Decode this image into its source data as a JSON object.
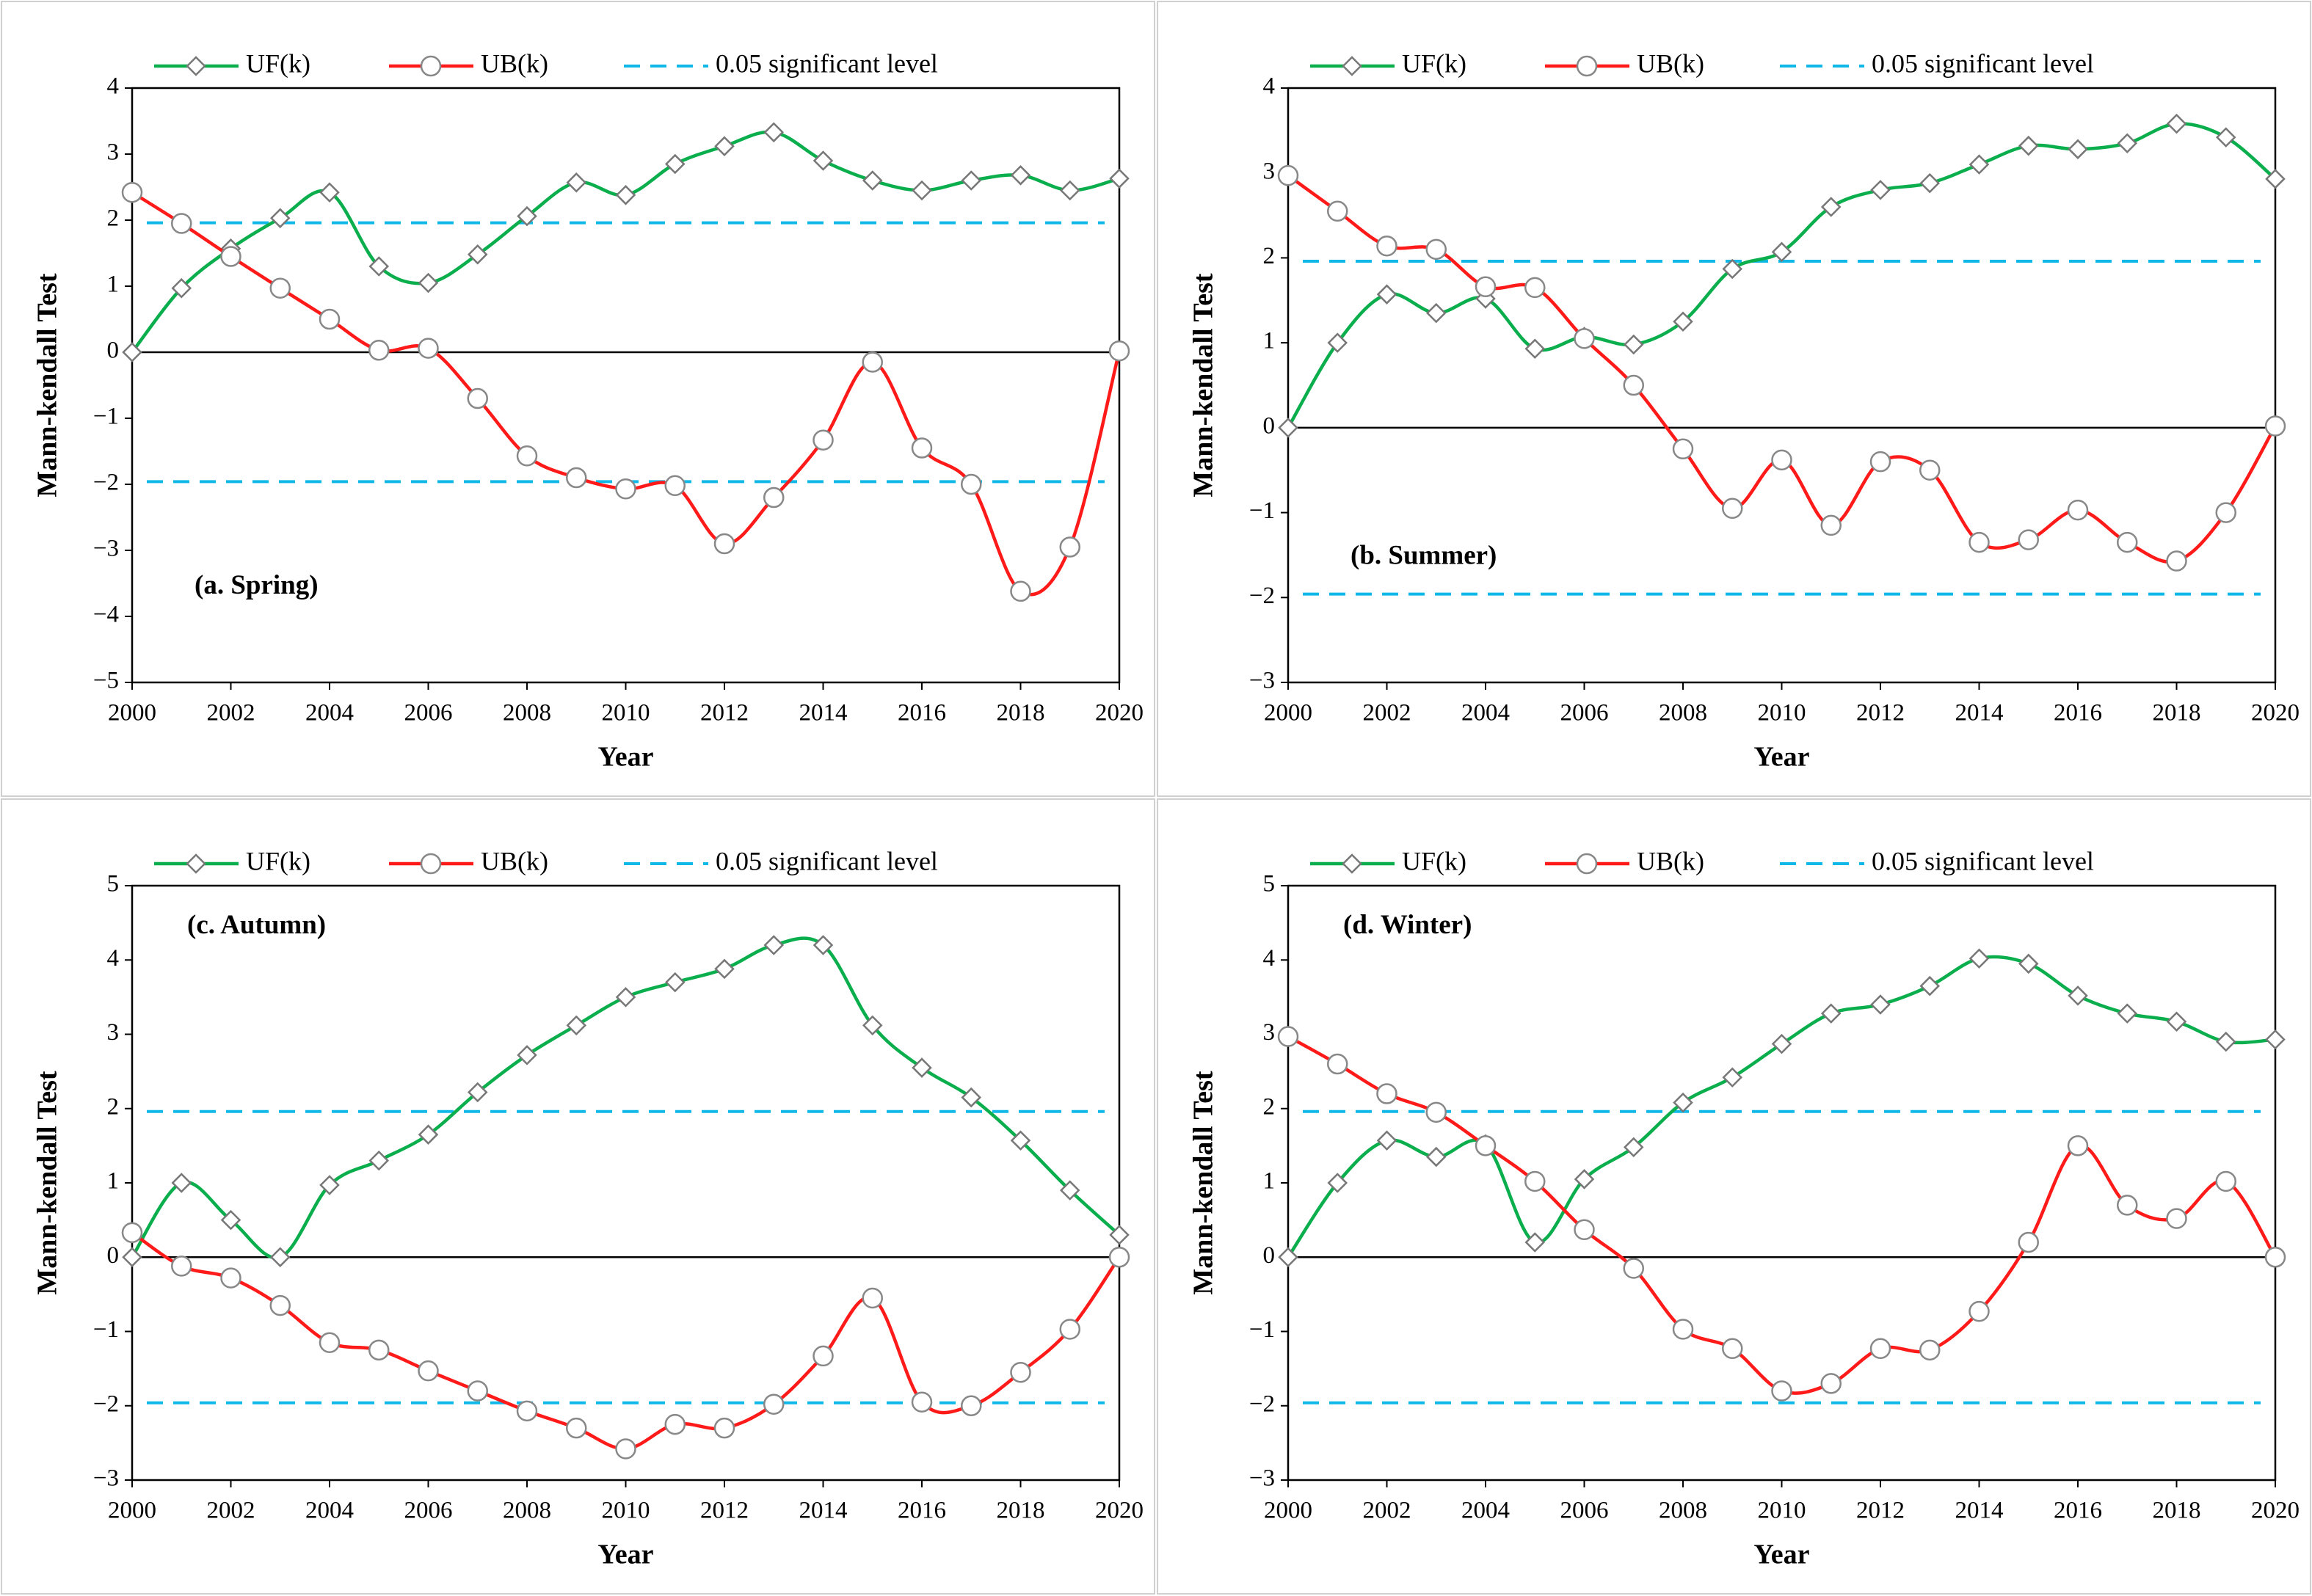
{
  "chart_data": [
    {
      "type": "line",
      "annotation": "(a. Spring)",
      "xlabel": "Year",
      "ylabel": "Mann-kendall Test",
      "x": [
        2000,
        2001,
        2002,
        2003,
        2004,
        2005,
        2006,
        2007,
        2008,
        2009,
        2010,
        2011,
        2012,
        2013,
        2014,
        2015,
        2016,
        2017,
        2018,
        2019,
        2020
      ],
      "xlim": [
        2000,
        2020
      ],
      "xticks": [
        2000,
        2002,
        2004,
        2006,
        2008,
        2010,
        2012,
        2014,
        2016,
        2018,
        2020
      ],
      "ylim": [
        -5,
        4
      ],
      "yticks": [
        {
          "value": -5,
          "label": "−5"
        },
        {
          "value": -4,
          "label": "−4"
        },
        {
          "value": -3,
          "label": "−3"
        },
        {
          "value": -2,
          "label": "−2"
        },
        {
          "value": -1,
          "label": "−1"
        },
        0,
        1,
        2,
        3,
        4
      ],
      "series": [
        {
          "name": "UF(k)",
          "color": "#0aae4c",
          "marker": "diamond",
          "values": [
            0,
            0.97,
            1.57,
            2.03,
            2.42,
            1.3,
            1.05,
            1.48,
            2.06,
            2.57,
            2.38,
            2.85,
            3.12,
            3.33,
            2.9,
            2.6,
            2.45,
            2.6,
            2.68,
            2.45,
            2.63
          ]
        },
        {
          "name": "UB(k)",
          "color": "#ff1a1a",
          "marker": "circle",
          "values": [
            2.42,
            1.95,
            1.45,
            0.97,
            0.5,
            0.03,
            0.06,
            -0.7,
            -1.57,
            -1.9,
            -2.07,
            -2.02,
            -2.9,
            -2.2,
            -1.33,
            -0.15,
            -1.45,
            -2.0,
            -3.62,
            -2.95,
            0.02
          ]
        }
      ],
      "reference_lines": {
        "name": "0.05 significant level",
        "color": "#10b8e8",
        "values": [
          1.96,
          -1.96
        ]
      }
    },
    {
      "type": "line",
      "annotation": "(b. Summer)",
      "xlabel": "Year",
      "ylabel": "Mann-kendall Test",
      "x": [
        2000,
        2001,
        2002,
        2003,
        2004,
        2005,
        2006,
        2007,
        2008,
        2009,
        2010,
        2011,
        2012,
        2013,
        2014,
        2015,
        2016,
        2017,
        2018,
        2019,
        2020
      ],
      "xlim": [
        2000,
        2020
      ],
      "xticks": [
        2000,
        2002,
        2004,
        2006,
        2008,
        2010,
        2012,
        2014,
        2016,
        2018,
        2020
      ],
      "ylim": [
        -3,
        4
      ],
      "yticks": [
        {
          "value": -3,
          "label": "−3"
        },
        {
          "value": -2,
          "label": "−2"
        },
        {
          "value": -1,
          "label": "−1"
        },
        0,
        1,
        2,
        3,
        4
      ],
      "series": [
        {
          "name": "UF(k)",
          "color": "#0aae4c",
          "marker": "diamond",
          "values": [
            0,
            1.0,
            1.57,
            1.35,
            1.52,
            0.93,
            1.07,
            0.98,
            1.25,
            1.87,
            2.07,
            2.6,
            2.8,
            2.88,
            3.1,
            3.32,
            3.28,
            3.35,
            3.58,
            3.42,
            2.93
          ]
        },
        {
          "name": "UB(k)",
          "color": "#ff1a1a",
          "marker": "circle",
          "values": [
            2.97,
            2.55,
            2.14,
            2.1,
            1.66,
            1.65,
            1.05,
            0.5,
            -0.25,
            -0.95,
            -0.38,
            -1.15,
            -0.4,
            -0.5,
            -1.35,
            -1.32,
            -0.97,
            -1.35,
            -1.57,
            -1.0,
            0.02
          ]
        }
      ],
      "reference_lines": {
        "name": "0.05 significant level",
        "color": "#10b8e8",
        "values": [
          1.96,
          -1.96
        ]
      }
    },
    {
      "type": "line",
      "annotation": "(c. Autumn)",
      "xlabel": "Year",
      "ylabel": "Mann-kendall Test",
      "x": [
        2000,
        2001,
        2002,
        2003,
        2004,
        2005,
        2006,
        2007,
        2008,
        2009,
        2010,
        2011,
        2012,
        2013,
        2014,
        2015,
        2016,
        2017,
        2018,
        2019,
        2020
      ],
      "xlim": [
        2000,
        2020
      ],
      "xticks": [
        2000,
        2002,
        2004,
        2006,
        2008,
        2010,
        2012,
        2014,
        2016,
        2018,
        2020
      ],
      "ylim": [
        -3,
        5
      ],
      "yticks": [
        {
          "value": -3,
          "label": "−3"
        },
        {
          "value": -2,
          "label": "−2"
        },
        {
          "value": -1,
          "label": "−1"
        },
        0,
        1,
        2,
        3,
        4,
        5
      ],
      "series": [
        {
          "name": "UF(k)",
          "color": "#0aae4c",
          "marker": "diamond",
          "values": [
            0,
            1.0,
            0.5,
            0,
            0.97,
            1.3,
            1.65,
            2.22,
            2.72,
            3.12,
            3.5,
            3.7,
            3.88,
            4.2,
            4.2,
            3.12,
            2.55,
            2.15,
            1.57,
            0.9,
            0.3
          ]
        },
        {
          "name": "UB(k)",
          "color": "#ff1a1a",
          "marker": "circle",
          "values": [
            0.33,
            -0.12,
            -0.28,
            -0.65,
            -1.15,
            -1.25,
            -1.53,
            -1.8,
            -2.07,
            -2.3,
            -2.58,
            -2.25,
            -2.3,
            -1.98,
            -1.33,
            -0.55,
            -1.95,
            -2.0,
            -1.55,
            -0.97,
            0.0
          ]
        }
      ],
      "reference_lines": {
        "name": "0.05 significant level",
        "color": "#10b8e8",
        "values": [
          1.96,
          -1.96
        ]
      }
    },
    {
      "type": "line",
      "annotation": "(d. Winter)",
      "xlabel": "Year",
      "ylabel": "Mann-kendall Test",
      "x": [
        2000,
        2001,
        2002,
        2003,
        2004,
        2005,
        2006,
        2007,
        2008,
        2009,
        2010,
        2011,
        2012,
        2013,
        2014,
        2015,
        2016,
        2017,
        2018,
        2019,
        2020
      ],
      "xlim": [
        2000,
        2020
      ],
      "xticks": [
        2000,
        2002,
        2004,
        2006,
        2008,
        2010,
        2012,
        2014,
        2016,
        2018,
        2020
      ],
      "ylim": [
        -3,
        5
      ],
      "yticks": [
        {
          "value": -3,
          "label": "−3"
        },
        {
          "value": -2,
          "label": "−2"
        },
        {
          "value": -1,
          "label": "−1"
        },
        0,
        1,
        2,
        3,
        4,
        5
      ],
      "series": [
        {
          "name": "UF(k)",
          "color": "#0aae4c",
          "marker": "diamond",
          "values": [
            0,
            1.0,
            1.57,
            1.35,
            1.52,
            0.2,
            1.05,
            1.48,
            2.08,
            2.42,
            2.87,
            3.28,
            3.4,
            3.65,
            4.02,
            3.95,
            3.52,
            3.28,
            3.17,
            2.9,
            2.93
          ]
        },
        {
          "name": "UB(k)",
          "color": "#ff1a1a",
          "marker": "circle",
          "values": [
            2.97,
            2.6,
            2.2,
            1.95,
            1.5,
            1.02,
            0.37,
            -0.15,
            -0.97,
            -1.23,
            -1.8,
            -1.7,
            -1.23,
            -1.25,
            -0.73,
            0.2,
            1.5,
            0.7,
            0.52,
            1.02,
            0.0
          ]
        }
      ],
      "reference_lines": {
        "name": "0.05 significant level",
        "color": "#10b8e8",
        "values": [
          1.96,
          -1.96
        ]
      }
    }
  ]
}
